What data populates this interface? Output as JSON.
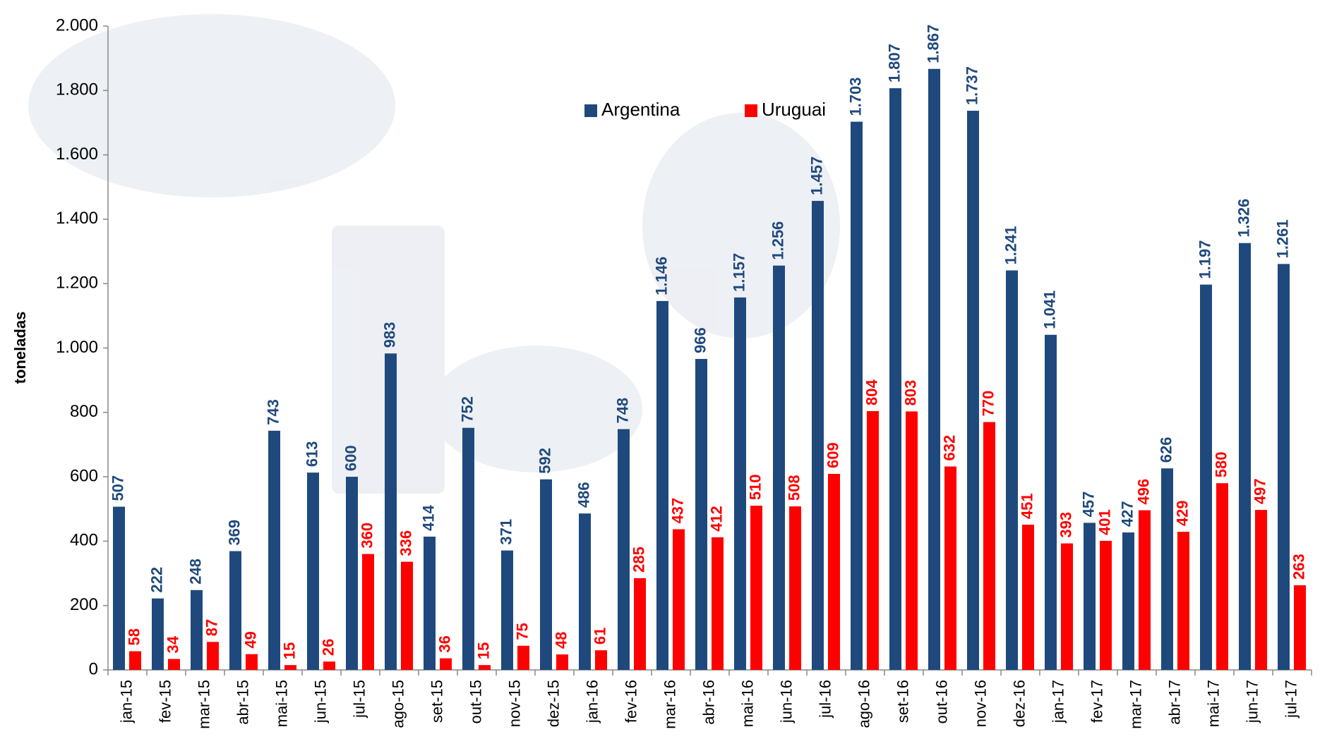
{
  "chart_data": {
    "type": "bar",
    "y_label": "toneladas",
    "categories": [
      "jan-15",
      "fev-15",
      "mar-15",
      "abr-15",
      "mai-15",
      "jun-15",
      "jul-15",
      "ago-15",
      "set-15",
      "out-15",
      "nov-15",
      "dez-15",
      "jan-16",
      "fev-16",
      "mar-16",
      "abr-16",
      "mai-16",
      "jun-16",
      "jul-16",
      "ago-16",
      "set-16",
      "out-16",
      "nov-16",
      "dez-16",
      "jan-17",
      "fev-17",
      "mar-17",
      "abr-17",
      "mai-17",
      "jun-17",
      "jul-17"
    ],
    "series": [
      {
        "name": "Argentina",
        "color": "#1f497d",
        "values": [
          507,
          222,
          248,
          369,
          743,
          613,
          600,
          983,
          414,
          752,
          371,
          592,
          486,
          748,
          1146,
          966,
          1157,
          1256,
          1457,
          1703,
          1807,
          1867,
          1737,
          1241,
          1041,
          457,
          427,
          626,
          1197,
          1326,
          1261
        ],
        "value_labels": [
          "507",
          "222",
          "248",
          "369",
          "743",
          "613",
          "600",
          "983",
          "414",
          "752",
          "371",
          "592",
          "486",
          "748",
          "1.146",
          "966",
          "1.157",
          "1.256",
          "1.457",
          "1.703",
          "1.807",
          "1.867",
          "1.737",
          "1.241",
          "1.041",
          "457",
          "427",
          "626",
          "1.197",
          "1.326",
          "1.261"
        ]
      },
      {
        "name": "Uruguai",
        "color": "#ff0000",
        "values": [
          58,
          34,
          87,
          49,
          15,
          26,
          360,
          336,
          36,
          15,
          75,
          48,
          61,
          285,
          437,
          412,
          510,
          508,
          609,
          804,
          803,
          632,
          770,
          451,
          393,
          401,
          496,
          429,
          580,
          497,
          263
        ],
        "value_labels": [
          "58",
          "34",
          "87",
          "49",
          "15",
          "26",
          "360",
          "336",
          "36",
          "15",
          "75",
          "48",
          "61",
          "285",
          "437",
          "412",
          "510",
          "508",
          "609",
          "804",
          "803",
          "632",
          "770",
          "451",
          "393",
          "401",
          "496",
          "429",
          "580",
          "497",
          "263"
        ]
      }
    ],
    "ylim": [
      0,
      2000
    ],
    "yticks": [
      {
        "value": 0,
        "label": "0"
      },
      {
        "value": 200,
        "label": "200"
      },
      {
        "value": 400,
        "label": "400"
      },
      {
        "value": 600,
        "label": "600"
      },
      {
        "value": 800,
        "label": "800"
      },
      {
        "value": 1000,
        "label": "1.000"
      },
      {
        "value": 1200,
        "label": "1.200"
      },
      {
        "value": 1400,
        "label": "1.400"
      },
      {
        "value": 1600,
        "label": "1.600"
      },
      {
        "value": 1800,
        "label": "1.800"
      },
      {
        "value": 2000,
        "label": "2.000"
      }
    ],
    "grid": false,
    "legend": "top"
  }
}
